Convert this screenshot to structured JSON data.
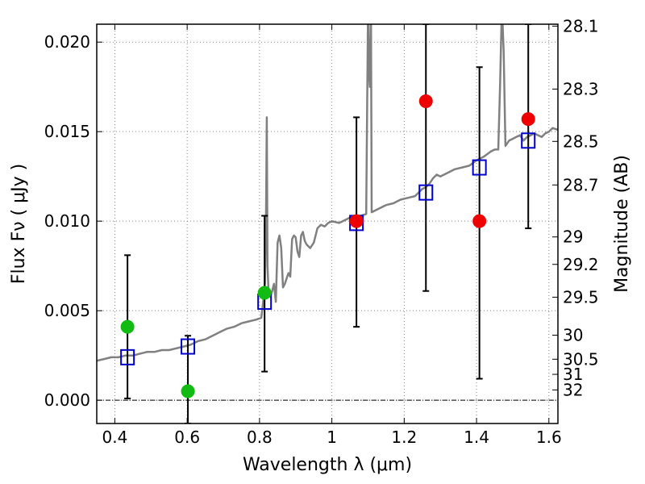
{
  "chart_data": {
    "type": "scatter",
    "xlabel": "Wavelength  λ (μm)",
    "ylabel": "Flux  Fν ( μJy )",
    "y2label": "Magnitude (AB)",
    "xlim": [
      0.35,
      1.625
    ],
    "ylim": [
      -0.0013,
      0.021
    ],
    "grid": true,
    "x_ticks": [
      0.4,
      0.6,
      0.8,
      1.0,
      1.2,
      1.4,
      1.6
    ],
    "x_tick_labels": [
      "0.4",
      "0.6",
      "0.8",
      "1",
      "1.2",
      "1.4",
      "1.6"
    ],
    "y_ticks": [
      0.0,
      0.005,
      0.01,
      0.015,
      0.02
    ],
    "y_tick_labels": [
      "0.000",
      "0.005",
      "0.010",
      "0.015",
      "0.020"
    ],
    "mag_ticks": [
      28.1,
      28.3,
      28.5,
      28.7,
      29,
      29.2,
      29.5,
      30,
      30.5,
      31,
      32
    ],
    "mag_tick_labels": [
      "28.1",
      "28.3",
      "28.5",
      "28.7",
      "29",
      "29.2",
      "29.5",
      "30",
      "30.5",
      "31",
      "32"
    ],
    "colors": {
      "model_line": "#808080",
      "model_box": "#0000cc",
      "green_point": "#11bb11",
      "red_point": "#ee0000",
      "error_bar": "#000000",
      "grid": "#808080"
    },
    "series": [
      {
        "name": "model_spectrum",
        "kind": "line",
        "x": [
          0.35,
          0.37,
          0.39,
          0.41,
          0.43,
          0.45,
          0.47,
          0.49,
          0.51,
          0.53,
          0.55,
          0.57,
          0.59,
          0.61,
          0.63,
          0.65,
          0.67,
          0.69,
          0.71,
          0.73,
          0.75,
          0.77,
          0.79,
          0.805,
          0.81,
          0.815,
          0.818,
          0.82,
          0.822,
          0.825,
          0.83,
          0.835,
          0.84,
          0.845,
          0.85,
          0.855,
          0.86,
          0.865,
          0.87,
          0.875,
          0.88,
          0.885,
          0.89,
          0.895,
          0.9,
          0.905,
          0.91,
          0.915,
          0.92,
          0.925,
          0.93,
          0.94,
          0.95,
          0.96,
          0.97,
          0.98,
          0.99,
          1.0,
          1.02,
          1.04,
          1.06,
          1.08,
          1.095,
          1.1,
          1.102,
          1.105,
          1.108,
          1.11,
          1.13,
          1.15,
          1.17,
          1.19,
          1.21,
          1.23,
          1.25,
          1.26,
          1.27,
          1.28,
          1.29,
          1.3,
          1.32,
          1.34,
          1.36,
          1.38,
          1.4,
          1.42,
          1.44,
          1.45,
          1.46,
          1.465,
          1.47,
          1.475,
          1.48,
          1.49,
          1.5,
          1.51,
          1.52,
          1.53,
          1.54,
          1.55,
          1.56,
          1.57,
          1.58,
          1.59,
          1.6,
          1.61,
          1.625
        ],
        "y": [
          0.0022,
          0.0023,
          0.0024,
          0.0024,
          0.0025,
          0.0025,
          0.0026,
          0.0027,
          0.0027,
          0.0028,
          0.0028,
          0.0029,
          0.003,
          0.0031,
          0.0033,
          0.0034,
          0.0036,
          0.0038,
          0.004,
          0.0041,
          0.0043,
          0.0044,
          0.0045,
          0.0046,
          0.0055,
          0.0065,
          0.0105,
          0.0158,
          0.0075,
          0.006,
          0.0058,
          0.0061,
          0.0065,
          0.0055,
          0.0088,
          0.0092,
          0.0085,
          0.0063,
          0.0065,
          0.0068,
          0.0071,
          0.0069,
          0.009,
          0.0092,
          0.0091,
          0.0083,
          0.008,
          0.0092,
          0.0094,
          0.0089,
          0.0087,
          0.0085,
          0.0088,
          0.0096,
          0.0098,
          0.0097,
          0.0099,
          0.01,
          0.0099,
          0.0101,
          0.0103,
          0.0103,
          0.0104,
          0.022,
          0.0185,
          0.0175,
          0.022,
          0.0105,
          0.0107,
          0.0109,
          0.011,
          0.0112,
          0.0113,
          0.0114,
          0.0118,
          0.0119,
          0.0121,
          0.0124,
          0.0126,
          0.0125,
          0.0127,
          0.0129,
          0.013,
          0.0131,
          0.0134,
          0.0136,
          0.0139,
          0.014,
          0.014,
          0.0175,
          0.022,
          0.0195,
          0.0142,
          0.0145,
          0.0146,
          0.0147,
          0.0148,
          0.0145,
          0.0147,
          0.0148,
          0.0149,
          0.0148,
          0.0147,
          0.0149,
          0.015,
          0.0152,
          0.0151
        ]
      },
      {
        "name": "model_photometry",
        "kind": "open-square",
        "x": [
          0.435,
          0.602,
          0.814,
          1.068,
          1.26,
          1.408,
          1.543
        ],
        "y": [
          0.0024,
          0.003,
          0.0055,
          0.0099,
          0.0116,
          0.013,
          0.0145
        ]
      },
      {
        "name": "observed_green",
        "kind": "filled-circle",
        "x": [
          0.435,
          0.602,
          0.814
        ],
        "y": [
          0.0041,
          0.0005,
          0.006
        ]
      },
      {
        "name": "observed_red",
        "kind": "filled-circle",
        "x": [
          1.068,
          1.26,
          1.408,
          1.543
        ],
        "y": [
          0.01,
          0.0167,
          0.01,
          0.0157
        ]
      },
      {
        "name": "error_bars",
        "kind": "errorbar",
        "x": [
          0.435,
          0.602,
          0.814,
          1.068,
          1.26,
          1.408,
          1.543
        ],
        "y_low": [
          0.0001,
          -0.0013,
          0.0016,
          0.0041,
          0.0061,
          0.0012,
          0.0096
        ],
        "y_high": [
          0.0081,
          0.0036,
          0.0103,
          0.0158,
          0.021,
          0.0186,
          0.021
        ]
      }
    ]
  }
}
